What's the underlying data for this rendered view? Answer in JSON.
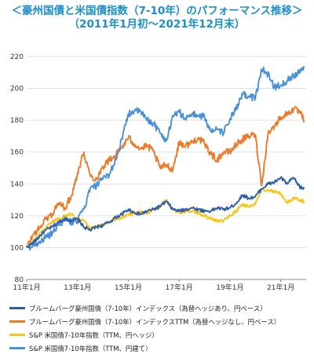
{
  "header": {
    "title": "＜豪州国債と米国債指数（7-10年）のパフォーマンス推移＞",
    "subtitle": "（2011年1月初〜2021年12月末）"
  },
  "chart_data": {
    "type": "line",
    "title": "＜豪州国債と米国債指数（7-10年）のパフォーマンス推移＞",
    "subtitle": "（2011年1月初〜2021年12月末）",
    "xlabel": "",
    "ylabel": "",
    "x_ticks": [
      "11年1月",
      "13年1月",
      "15年1月",
      "17年1月",
      "19年1月",
      "21年1月"
    ],
    "x_range": [
      "2011-01",
      "2021-12"
    ],
    "y_ticks": [
      80,
      100,
      120,
      140,
      160,
      180,
      200,
      220
    ],
    "ylim": [
      80,
      220
    ],
    "grid": "horizontal",
    "legend_position": "bottom",
    "series": [
      {
        "name": "ブルームバーグ豪州国債（7-10年）インデックス（為替ヘッジあり、円ベース）",
        "color": "#2f5ea8",
        "x": [
          "2011-01",
          "2011-04",
          "2011-07",
          "2011-10",
          "2012-01",
          "2012-04",
          "2012-07",
          "2012-10",
          "2013-01",
          "2013-04",
          "2013-07",
          "2013-10",
          "2014-01",
          "2014-04",
          "2014-07",
          "2014-10",
          "2015-01",
          "2015-04",
          "2015-07",
          "2015-10",
          "2016-01",
          "2016-04",
          "2016-07",
          "2016-10",
          "2017-01",
          "2017-04",
          "2017-07",
          "2017-10",
          "2018-01",
          "2018-04",
          "2018-07",
          "2018-10",
          "2019-01",
          "2019-04",
          "2019-07",
          "2019-10",
          "2020-01",
          "2020-04",
          "2020-07",
          "2020-10",
          "2021-01",
          "2021-04",
          "2021-07",
          "2021-10",
          "2021-12"
        ],
        "values": [
          100,
          103,
          107,
          111,
          113,
          116,
          118,
          117,
          118,
          113,
          111,
          113,
          114,
          116,
          119,
          121,
          124,
          122,
          121,
          123,
          124,
          126,
          129,
          124,
          123,
          124,
          125,
          124,
          123,
          123,
          125,
          124,
          125,
          128,
          133,
          131,
          132,
          137,
          140,
          141,
          144,
          140,
          144,
          138,
          137
        ]
      },
      {
        "name": "ブルームバーグ豪州国債（7-10年）インデックスTTM（為替ヘッジなし、円ベース）",
        "color": "#ec7a2b",
        "x": [
          "2011-01",
          "2011-04",
          "2011-07",
          "2011-10",
          "2012-01",
          "2012-04",
          "2012-07",
          "2012-10",
          "2013-01",
          "2013-04",
          "2013-07",
          "2013-10",
          "2014-01",
          "2014-04",
          "2014-07",
          "2014-10",
          "2015-01",
          "2015-04",
          "2015-07",
          "2015-10",
          "2016-01",
          "2016-04",
          "2016-07",
          "2016-10",
          "2017-01",
          "2017-04",
          "2017-07",
          "2017-10",
          "2018-01",
          "2018-04",
          "2018-07",
          "2018-10",
          "2019-01",
          "2019-04",
          "2019-07",
          "2019-10",
          "2020-01",
          "2020-04",
          "2020-07",
          "2020-10",
          "2021-01",
          "2021-04",
          "2021-07",
          "2021-10",
          "2021-12"
        ],
        "values": [
          100,
          108,
          112,
          118,
          121,
          128,
          125,
          132,
          147,
          160,
          145,
          143,
          151,
          155,
          158,
          163,
          169,
          165,
          162,
          164,
          160,
          150,
          152,
          149,
          166,
          164,
          166,
          169,
          165,
          159,
          155,
          160,
          160,
          165,
          168,
          170,
          171,
          139,
          172,
          176,
          182,
          184,
          187,
          185,
          180
        ]
      },
      {
        "name": "S&P 米国債7-10年指数（TTM、円ヘッジ）",
        "color": "#f5c518",
        "x": [
          "2011-01",
          "2011-04",
          "2011-07",
          "2011-10",
          "2012-01",
          "2012-04",
          "2012-07",
          "2012-10",
          "2013-01",
          "2013-04",
          "2013-07",
          "2013-10",
          "2014-01",
          "2014-04",
          "2014-07",
          "2014-10",
          "2015-01",
          "2015-04",
          "2015-07",
          "2015-10",
          "2016-01",
          "2016-04",
          "2016-07",
          "2016-10",
          "2017-01",
          "2017-04",
          "2017-07",
          "2017-10",
          "2018-01",
          "2018-04",
          "2018-07",
          "2018-10",
          "2019-01",
          "2019-04",
          "2019-07",
          "2019-10",
          "2020-01",
          "2020-04",
          "2020-07",
          "2020-10",
          "2021-01",
          "2021-04",
          "2021-07",
          "2021-10",
          "2021-12"
        ],
        "values": [
          100,
          104,
          108,
          112,
          116,
          118,
          120,
          121,
          118,
          117,
          112,
          113,
          115,
          116,
          118,
          119,
          121,
          121,
          122,
          122,
          124,
          126,
          130,
          124,
          122,
          123,
          123,
          122,
          120,
          118,
          117,
          117,
          120,
          123,
          127,
          126,
          127,
          137,
          136,
          135,
          134,
          128,
          131,
          130,
          129
        ]
      },
      {
        "name": "S&P 米国債7-10年指数（TTM、円建て）",
        "color": "#4a90d9",
        "x": [
          "2011-01",
          "2011-04",
          "2011-07",
          "2011-10",
          "2012-01",
          "2012-04",
          "2012-07",
          "2012-10",
          "2013-01",
          "2013-04",
          "2013-07",
          "2013-10",
          "2014-01",
          "2014-04",
          "2014-07",
          "2014-10",
          "2015-01",
          "2015-04",
          "2015-07",
          "2015-10",
          "2016-01",
          "2016-04",
          "2016-07",
          "2016-10",
          "2017-01",
          "2017-04",
          "2017-07",
          "2017-10",
          "2018-01",
          "2018-04",
          "2018-07",
          "2018-10",
          "2019-01",
          "2019-04",
          "2019-07",
          "2019-10",
          "2020-01",
          "2020-04",
          "2020-07",
          "2020-10",
          "2021-01",
          "2021-04",
          "2021-07",
          "2021-10",
          "2021-12"
        ],
        "values": [
          100,
          101,
          104,
          106,
          109,
          114,
          118,
          116,
          117,
          124,
          137,
          139,
          143,
          146,
          155,
          168,
          184,
          186,
          185,
          180,
          178,
          172,
          167,
          183,
          185,
          181,
          184,
          183,
          182,
          173,
          174,
          172,
          181,
          187,
          196,
          195,
          194,
          212,
          209,
          201,
          202,
          205,
          208,
          211,
          214
        ]
      }
    ]
  }
}
